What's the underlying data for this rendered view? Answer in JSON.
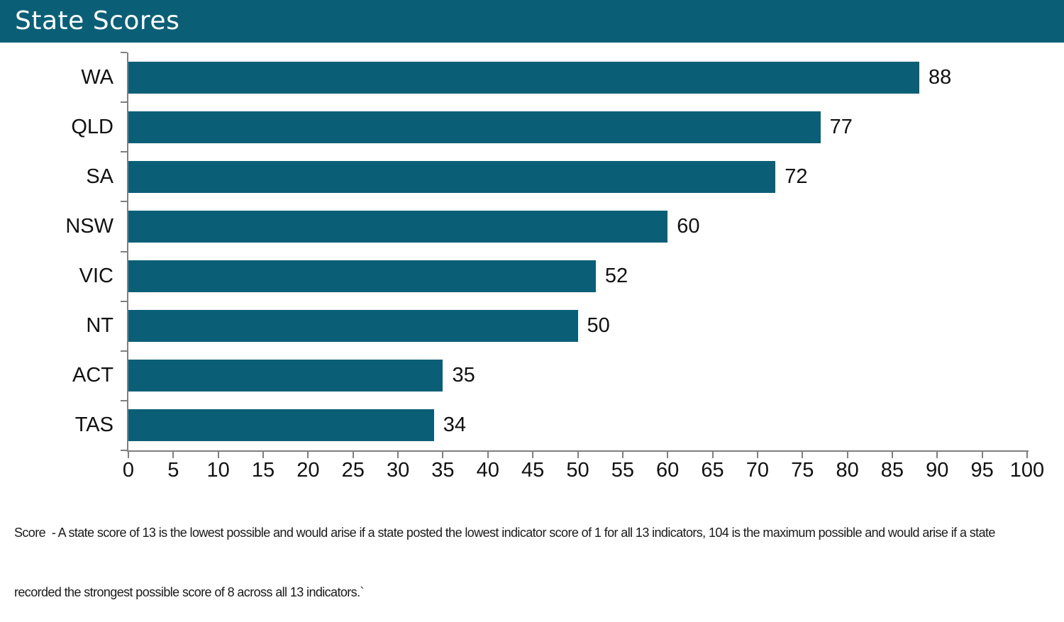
{
  "header": {
    "title": "State Scores",
    "bg_color": "#0a5f77",
    "text_color": "#ffffff"
  },
  "chart_data": {
    "type": "bar",
    "orientation": "horizontal",
    "title": "State Scores",
    "categories": [
      "WA",
      "QLD",
      "SA",
      "NSW",
      "VIC",
      "NT",
      "ACT",
      "TAS"
    ],
    "values": [
      88,
      77,
      72,
      60,
      52,
      50,
      35,
      34
    ],
    "xlim": [
      0,
      100
    ],
    "x_ticks": [
      0,
      5,
      10,
      15,
      20,
      25,
      30,
      35,
      40,
      45,
      50,
      55,
      60,
      65,
      70,
      75,
      80,
      85,
      90,
      95,
      100
    ],
    "bar_color": "#0a5f77",
    "axis_color": "#7f7f7f",
    "value_labels_shown": true,
    "grid": "off",
    "legend": "none"
  },
  "footnote": {
    "line1": "Score  - A state score of 13 is the lowest possible and would arise if a state posted the lowest indicator score of 1 for all 13 indicators, 104 is the maximum possible and would arise if a state",
    "line2": "recorded the strongest possible score of 8 across all 13 indicators.`"
  }
}
